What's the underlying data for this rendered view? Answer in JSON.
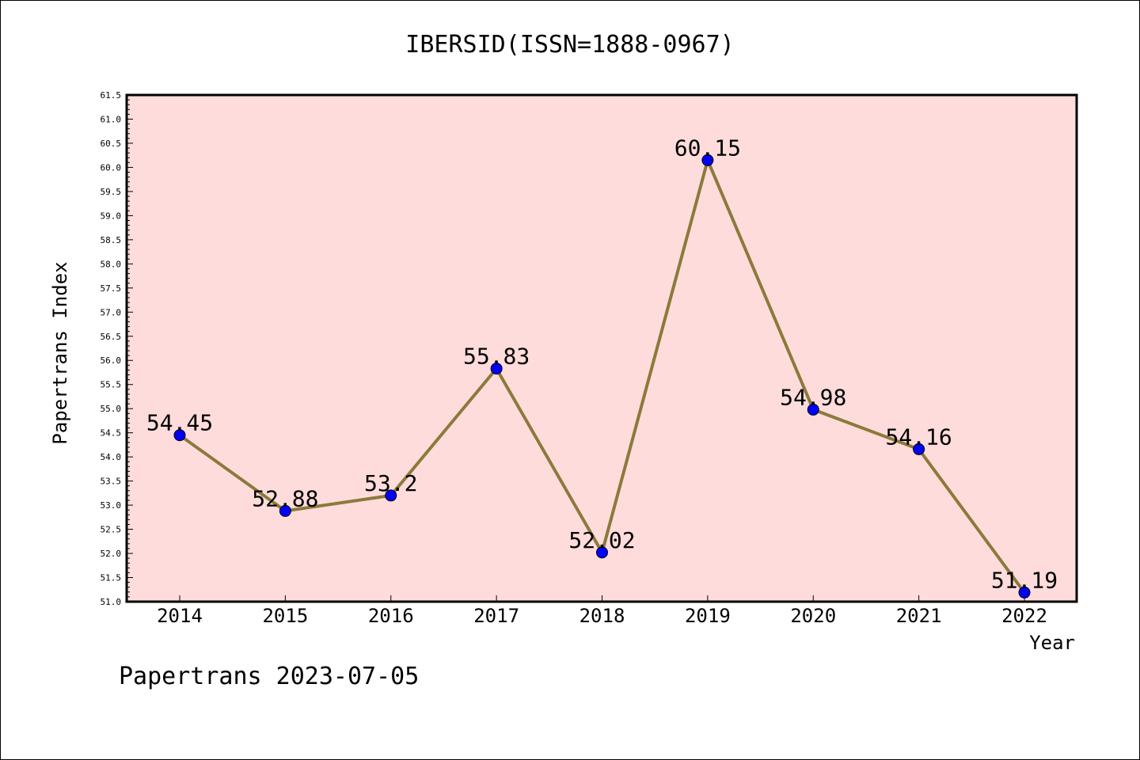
{
  "chart_data": {
    "type": "line",
    "title": "IBERSID(ISSN=1888-0967)",
    "xlabel": "Year",
    "ylabel": "Papertrans Index",
    "categories": [
      "2014",
      "2015",
      "2016",
      "2017",
      "2018",
      "2019",
      "2020",
      "2021",
      "2022"
    ],
    "values": [
      54.45,
      52.88,
      53.2,
      55.83,
      52.02,
      60.15,
      54.98,
      54.16,
      51.19
    ],
    "data_labels": [
      "54.45",
      "52.88",
      "53.2",
      "55.83",
      "52.02",
      "60.15",
      "54.98",
      "54.16",
      "51.19"
    ],
    "ylim": [
      51.0,
      61.5
    ],
    "ytick_step": 0.5,
    "ytick_labels": [
      "51.0",
      "51.5",
      "52.0",
      "52.5",
      "53.0",
      "53.5",
      "54.0",
      "54.5",
      "55.0",
      "55.5",
      "56.0",
      "56.5",
      "57.0",
      "57.5",
      "58.0",
      "58.5",
      "59.0",
      "59.5",
      "60.0",
      "60.5",
      "61.0",
      "61.5"
    ],
    "grid": false,
    "legend": "none",
    "colors": {
      "plot_background": "#ffdcdc",
      "line": "#8b7a3a",
      "marker": "#0000ff",
      "axes": "#000000"
    }
  },
  "footer": {
    "watermark": "Papertrans 2023-07-05"
  }
}
